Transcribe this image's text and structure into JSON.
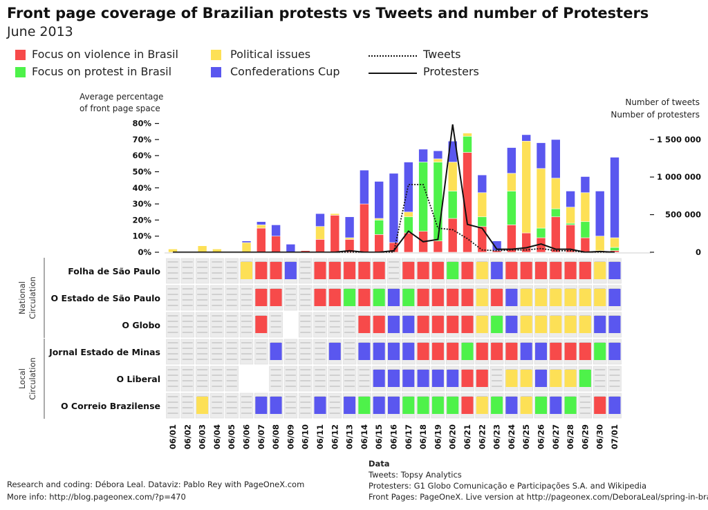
{
  "header": {
    "title": "Front page coverage of Brazilian protests vs Tweets and number of Protesters",
    "subtitle": "June 2013"
  },
  "legend": {
    "violence": "Focus on violence in Brasil",
    "protest": "Focus on protest in Brasil",
    "political": "Political issues",
    "cup": "Confederations Cup",
    "tweets": "Tweets",
    "protesters": "Protesters"
  },
  "colors": {
    "violence": "#f74a4a",
    "protest": "#4ef24a",
    "political": "#fde056",
    "cup": "#5a57ef",
    "tweets": "#111111",
    "protesters": "#111111"
  },
  "axes": {
    "left_caption_1": "Average percentage",
    "left_caption_2": "of front page space",
    "right_caption_1": "Number of tweets",
    "right_caption_2": "Number of protesters"
  },
  "chart_data": {
    "type": "bar",
    "stacked": true,
    "categories": [
      "06/01",
      "06/02",
      "06/03",
      "06/04",
      "06/05",
      "06/06",
      "06/07",
      "06/08",
      "06/09",
      "06/10",
      "06/11",
      "06/12",
      "06/13",
      "06/14",
      "06/15",
      "06/16",
      "06/17",
      "06/18",
      "06/19",
      "06/20",
      "06/21",
      "06/22",
      "06/23",
      "06/24",
      "06/25",
      "06/26",
      "06/27",
      "06/28",
      "06/29",
      "06/30",
      "07/01"
    ],
    "y_left": {
      "ylim": [
        0,
        80
      ],
      "ticks": [
        "0%",
        "10%",
        "20%",
        "30%",
        "40%",
        "50%",
        "60%",
        "70%",
        "80%"
      ],
      "tick_values": [
        0,
        10,
        20,
        30,
        40,
        50,
        60,
        70,
        80
      ]
    },
    "y_right": {
      "ylim": [
        0,
        1800000
      ],
      "ticks": [
        "0",
        "500 000",
        "1 000 000",
        "1 500 000"
      ],
      "tick_values": [
        0,
        500000,
        1000000,
        1500000
      ]
    },
    "series": [
      {
        "name": "Focus on violence in Brasil",
        "color_key": "violence",
        "values": [
          0,
          0,
          0,
          0,
          0,
          0,
          15,
          10,
          0,
          1,
          8,
          23,
          8,
          30,
          11,
          6,
          12,
          13,
          7,
          21,
          62,
          16,
          1,
          17,
          12,
          9,
          22,
          17,
          9,
          1,
          1
        ]
      },
      {
        "name": "Focus on protest in Brasil",
        "color_key": "protest",
        "values": [
          0,
          0,
          0,
          0,
          0,
          0,
          0,
          0,
          0,
          0,
          0,
          0,
          0,
          0,
          9,
          0,
          10,
          43,
          49,
          17,
          10,
          6,
          0,
          21,
          0,
          6,
          5,
          1,
          10,
          0,
          2
        ]
      },
      {
        "name": "Political issues",
        "color_key": "political",
        "values": [
          2,
          0,
          4,
          2,
          0,
          6,
          2,
          0,
          0,
          0,
          8,
          1,
          1,
          0,
          1,
          0,
          3,
          0,
          2,
          18,
          2,
          15,
          0,
          11,
          57,
          37,
          19,
          10,
          18,
          9,
          6
        ]
      },
      {
        "name": "Confederations Cup",
        "color_key": "cup",
        "values": [
          0,
          0,
          0,
          0,
          0,
          1,
          2,
          7,
          5,
          0,
          8,
          0,
          13,
          21,
          23,
          43,
          31,
          8,
          5,
          13,
          0,
          11,
          6,
          16,
          4,
          16,
          24,
          10,
          10,
          28,
          50
        ]
      }
    ],
    "lines": [
      {
        "name": "Tweets",
        "style": "dotted",
        "values": [
          0,
          0,
          0,
          0,
          0,
          0,
          0,
          0,
          0,
          0,
          0,
          0,
          0,
          0,
          0,
          0,
          900000,
          900000,
          320000,
          300000,
          180000,
          30000,
          20000,
          30000,
          30000,
          50000,
          20000,
          20000,
          0,
          0,
          0
        ]
      },
      {
        "name": "Protesters",
        "style": "solid",
        "values": [
          0,
          0,
          0,
          0,
          0,
          0,
          0,
          0,
          0,
          0,
          0,
          0,
          20000,
          0,
          0,
          20000,
          280000,
          140000,
          170000,
          1700000,
          370000,
          320000,
          40000,
          40000,
          60000,
          110000,
          40000,
          40000,
          0,
          10000,
          0
        ]
      }
    ],
    "newspaper_groups": [
      {
        "label": "National Circulation",
        "papers": [
          "Folha de São Paulo",
          "O Estado de São Paulo",
          "O Globo"
        ]
      },
      {
        "label": "Local Circulation",
        "papers": [
          "Jornal Estado de Minas",
          "O Liberal",
          "O Correio Brazilense"
        ]
      }
    ],
    "front_pages": [
      [
        "p",
        "p",
        "p",
        "p",
        "p",
        "y",
        "r",
        "r",
        "c",
        "p",
        "r",
        "r",
        "r",
        "r",
        "r",
        "p",
        "r",
        "r",
        "r",
        "g",
        "r",
        "y",
        "c",
        "r",
        "r",
        "r",
        "r",
        "r",
        "r",
        "y",
        "c"
      ],
      [
        "p",
        "p",
        "p",
        "p",
        "p",
        "p",
        "r",
        "r",
        "p",
        "p",
        "r",
        "r",
        "g",
        "r",
        "g",
        "c",
        "g",
        "r",
        "r",
        "r",
        "r",
        "y",
        "r",
        "c",
        "y",
        "y",
        "y",
        "y",
        "y",
        "y",
        "c"
      ],
      [
        "p",
        "p",
        "p",
        "p",
        "p",
        "p",
        "r",
        "p",
        "n",
        "p",
        "p",
        "p",
        "p",
        "r",
        "r",
        "c",
        "c",
        "r",
        "r",
        "r",
        "r",
        "y",
        "g",
        "c",
        "y",
        "y",
        "y",
        "y",
        "y",
        "c",
        "c"
      ],
      [
        "p",
        "p",
        "p",
        "p",
        "p",
        "p",
        "p",
        "c",
        "p",
        "p",
        "p",
        "c",
        "p",
        "c",
        "c",
        "c",
        "c",
        "r",
        "r",
        "r",
        "g",
        "r",
        "r",
        "r",
        "c",
        "c",
        "r",
        "r",
        "r",
        "g",
        "c"
      ],
      [
        "p",
        "p",
        "p",
        "p",
        "p",
        "n",
        "n",
        "p",
        "p",
        "p",
        "p",
        "p",
        "p",
        "p",
        "c",
        "c",
        "c",
        "c",
        "c",
        "c",
        "r",
        "r",
        "p",
        "y",
        "y",
        "c",
        "y",
        "y",
        "g",
        "p",
        "p"
      ],
      [
        "p",
        "p",
        "y",
        "p",
        "p",
        "p",
        "c",
        "c",
        "p",
        "p",
        "c",
        "p",
        "c",
        "g",
        "c",
        "c",
        "g",
        "g",
        "g",
        "g",
        "r",
        "y",
        "g",
        "c",
        "y",
        "g",
        "c",
        "g",
        "p",
        "r",
        "c"
      ]
    ]
  },
  "footer": {
    "credits_1": "Research and coding: Débora Leal. Dataviz: Pablo Rey with PageOneX.com",
    "credits_2": "More info: http://blog.pageonex.com/?p=470",
    "data_title": "Data",
    "data_tweets": "Tweets: Topsy Analytics",
    "data_protesters": "Protesters:  G1 Globo Comunicação e Participações S.A. and Wikipedia",
    "data_frontpages": "Front Pages: PageOneX. Live version at http://pageonex.com/DeboraLeal/spring-in-brazil/"
  }
}
